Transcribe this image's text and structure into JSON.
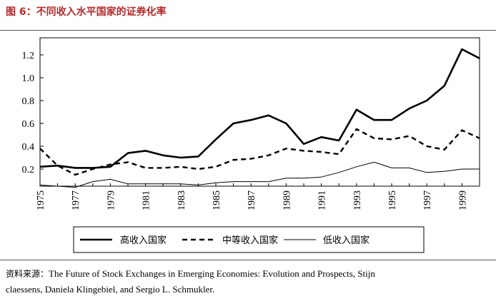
{
  "figure": {
    "title": "图 6：不同收入水平国家的证券化率"
  },
  "source": {
    "label": "资料来源：",
    "line1": "The Future of Stock Exchanges in Emerging Economies: Evolution and Prospects, Stijn",
    "line2": "claessens, Daniela Klingebiel, and Sergio L. Schmukler."
  },
  "chart_data": {
    "type": "line",
    "title": "",
    "xlabel": "",
    "ylabel": "",
    "x": [
      1975,
      1976,
      1977,
      1978,
      1979,
      1980,
      1981,
      1982,
      1983,
      1984,
      1985,
      1986,
      1987,
      1988,
      1989,
      1990,
      1991,
      1992,
      1993,
      1994,
      1995,
      1996,
      1997,
      1998,
      1999,
      2000
    ],
    "xticks": [
      "1975",
      "1977",
      "1979",
      "1981",
      "1983",
      "1985",
      "1987",
      "1989",
      "1991",
      "1993",
      "1995",
      "1997",
      "1999"
    ],
    "yticks": [
      "0.2",
      "0.4",
      "0.6",
      "0.8",
      "1.0",
      "1.2"
    ],
    "ylim": [
      0.05,
      1.35
    ],
    "legend_position": "bottom",
    "series": [
      {
        "name": "高收入国家",
        "style": "solid-thick",
        "color": "#000000",
        "values": [
          0.22,
          0.23,
          0.21,
          0.21,
          0.22,
          0.34,
          0.36,
          0.32,
          0.3,
          0.31,
          0.46,
          0.6,
          0.63,
          0.67,
          0.6,
          0.42,
          0.48,
          0.45,
          0.72,
          0.63,
          0.63,
          0.73,
          0.8,
          0.93,
          1.25,
          1.17
        ]
      },
      {
        "name": "中等收入国家",
        "style": "dashed",
        "color": "#000000",
        "values": [
          0.38,
          0.23,
          0.15,
          0.2,
          0.24,
          0.26,
          0.21,
          0.21,
          0.22,
          0.2,
          0.22,
          0.28,
          0.29,
          0.32,
          0.38,
          0.36,
          0.35,
          0.33,
          0.55,
          0.47,
          0.46,
          0.49,
          0.4,
          0.37,
          0.54,
          0.47
        ]
      },
      {
        "name": "低收入国家",
        "style": "solid-thin",
        "color": "#000000",
        "values": [
          0.06,
          0.05,
          0.04,
          0.09,
          0.11,
          0.07,
          0.07,
          0.07,
          0.07,
          0.06,
          0.08,
          0.09,
          0.09,
          0.09,
          0.12,
          0.12,
          0.13,
          0.17,
          0.22,
          0.26,
          0.21,
          0.21,
          0.17,
          0.18,
          0.2,
          0.2
        ]
      }
    ]
  }
}
